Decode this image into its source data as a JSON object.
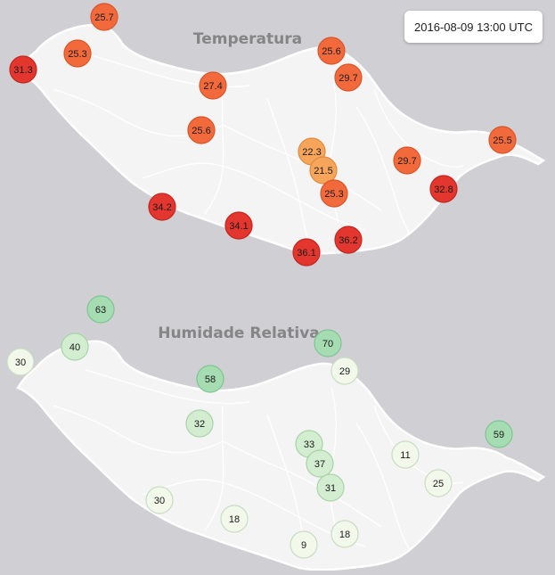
{
  "timestamp": "2016-08-09 13:00 UTC",
  "colors": {
    "background": "#cfcfd4",
    "island": "#f4f4f4",
    "temp_hot": "#e3362e",
    "temp_warm": "#f26a3b",
    "temp_mild": "#f6a55a",
    "hum_high": "#a6dcb2",
    "hum_mid": "#d3edd0",
    "hum_low": "#f2f8ea"
  },
  "temperature_map": {
    "title": "Temperatura",
    "stations": [
      {
        "value": "25.7",
        "level": "warm"
      },
      {
        "value": "25.3",
        "level": "warm"
      },
      {
        "value": "31.3",
        "level": "hot"
      },
      {
        "value": "27.4",
        "level": "warm"
      },
      {
        "value": "25.6",
        "level": "warm"
      },
      {
        "value": "25.6",
        "level": "warm"
      },
      {
        "value": "29.7",
        "level": "warm"
      },
      {
        "value": "22.3",
        "level": "mild"
      },
      {
        "value": "21.5",
        "level": "mild"
      },
      {
        "value": "25.3",
        "level": "warm"
      },
      {
        "value": "29.7",
        "level": "warm"
      },
      {
        "value": "25.5",
        "level": "warm"
      },
      {
        "value": "32.8",
        "level": "hot"
      },
      {
        "value": "34.2",
        "level": "hot"
      },
      {
        "value": "34.1",
        "level": "hot"
      },
      {
        "value": "36.2",
        "level": "hot"
      },
      {
        "value": "36.1",
        "level": "hot"
      }
    ]
  },
  "humidity_map": {
    "title": "Humidade Relativa",
    "stations": [
      {
        "value": "63",
        "level": "high"
      },
      {
        "value": "40",
        "level": "mid"
      },
      {
        "value": "30",
        "level": "low"
      },
      {
        "value": "70",
        "level": "high"
      },
      {
        "value": "29",
        "level": "low"
      },
      {
        "value": "58",
        "level": "high"
      },
      {
        "value": "32",
        "level": "mid"
      },
      {
        "value": "33",
        "level": "mid"
      },
      {
        "value": "37",
        "level": "mid"
      },
      {
        "value": "31",
        "level": "mid"
      },
      {
        "value": "11",
        "level": "low"
      },
      {
        "value": "59",
        "level": "high"
      },
      {
        "value": "25",
        "level": "low"
      },
      {
        "value": "30",
        "level": "low"
      },
      {
        "value": "18",
        "level": "low"
      },
      {
        "value": "18",
        "level": "low"
      },
      {
        "value": "9",
        "level": "low"
      }
    ]
  }
}
